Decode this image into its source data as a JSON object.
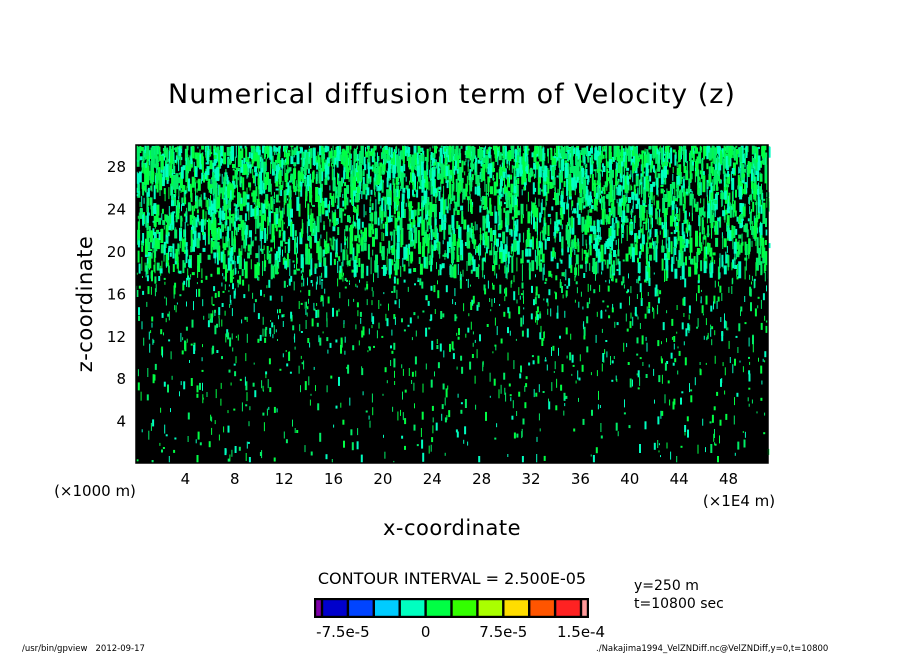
{
  "chart_data": {
    "type": "heatmap",
    "title": "Numerical diffusion term of Velocity (z)",
    "xlabel": "x-coordinate",
    "ylabel": "z-coordinate",
    "x_unit_left": "(×1000 m)",
    "x_unit_right": "(×1E4 m)",
    "xlim": [
      0,
      51.2
    ],
    "ylim": [
      0,
      30
    ],
    "x_ticks": [
      "4",
      "8",
      "12",
      "16",
      "20",
      "24",
      "28",
      "32",
      "36",
      "40",
      "44",
      "48"
    ],
    "x_tick_values": [
      4,
      8,
      12,
      16,
      20,
      24,
      28,
      32,
      36,
      40,
      44,
      48
    ],
    "y_ticks": [
      "4",
      "8",
      "12",
      "16",
      "20",
      "24",
      "28"
    ],
    "y_tick_values": [
      4,
      8,
      12,
      16,
      20,
      24,
      28
    ],
    "background_color": "#000000",
    "field_colors": [
      "#00ff44",
      "#00ffc0",
      "#00ee66"
    ],
    "description": "Dense vertical green/cyan streak pattern, densest near top (z>20), sparse below z=16",
    "contour_interval_label": "CONTOUR INTERVAL = 2.500E-05",
    "colorbar": {
      "colors": [
        "#7f00aa",
        "#0000cc",
        "#0044ff",
        "#00ccff",
        "#00ffc0",
        "#00ff44",
        "#33ff00",
        "#aaff00",
        "#ffdd00",
        "#ff5500",
        "#ff2222",
        "#ff9999"
      ],
      "tick_labels": [
        "-7.5e-5",
        "0",
        "7.5e-5",
        "1.5e-4"
      ],
      "tick_values": [
        -7.5e-05,
        0,
        7.5e-05,
        0.00015
      ]
    },
    "annotations": {
      "y_slice": "y=250 m",
      "time": "t=10800 sec"
    }
  },
  "footer": {
    "left": "/usr/bin/gpview   2012-09-17",
    "right": "./Nakajima1994_VelZNDiff.nc@VelZNDiff,y=0,t=10800"
  }
}
